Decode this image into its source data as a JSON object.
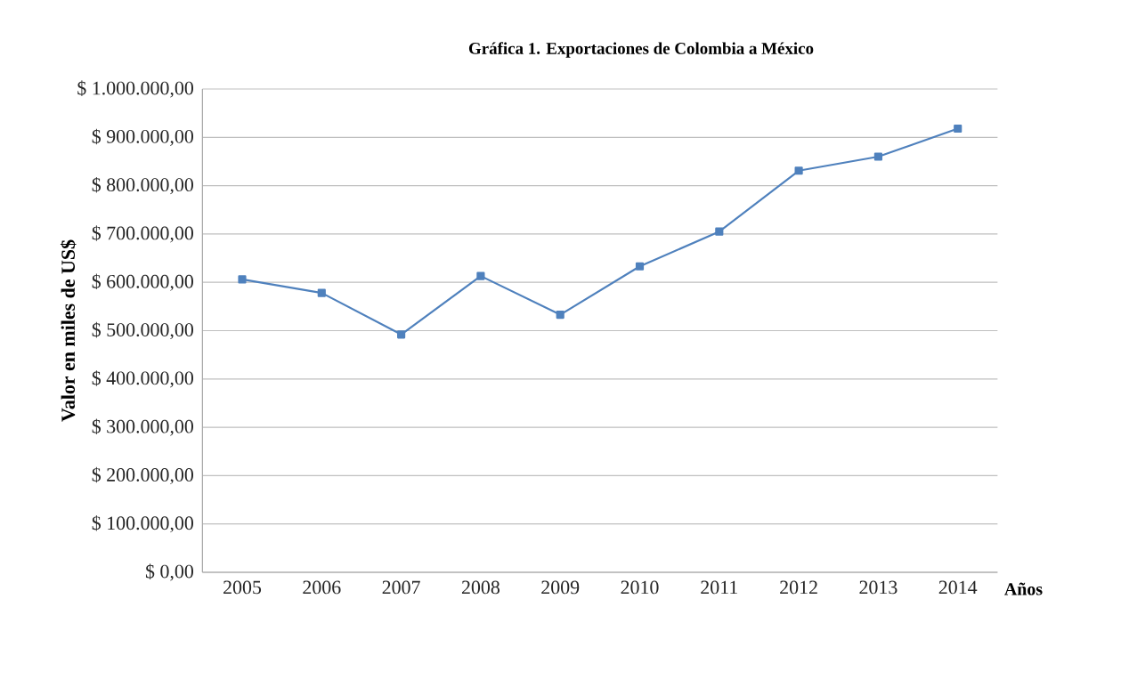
{
  "chart_data": {
    "type": "line",
    "title": "Gráfica 1. Exportaciones de Colombia a México",
    "xlabel": "Años",
    "ylabel": "Valor en miles de US$",
    "categories": [
      "2005",
      "2006",
      "2007",
      "2008",
      "2009",
      "2010",
      "2011",
      "2012",
      "2013",
      "2014"
    ],
    "series": [
      {
        "color": "#4f81bd",
        "values": [
          606000,
          578000,
          492000,
          613000,
          533000,
          633000,
          705000,
          831000,
          860000,
          918000
        ]
      }
    ],
    "ylim": [
      0,
      1000000
    ],
    "yticks": [
      {
        "value": 0,
        "label": "$ 0,00"
      },
      {
        "value": 100000,
        "label": "$ 100.000,00"
      },
      {
        "value": 200000,
        "label": "$ 200.000,00"
      },
      {
        "value": 300000,
        "label": "$ 300.000,00"
      },
      {
        "value": 400000,
        "label": "$ 400.000,00"
      },
      {
        "value": 500000,
        "label": "$ 500.000,00"
      },
      {
        "value": 600000,
        "label": "$ 600.000,00"
      },
      {
        "value": 700000,
        "label": "$ 700.000,00"
      },
      {
        "value": 800000,
        "label": "$ 800.000,00"
      },
      {
        "value": 900000,
        "label": "$ 900.000,00"
      },
      {
        "value": 1000000,
        "label": "$ 1.000.000,00"
      }
    ],
    "grid": "y",
    "marker": "square",
    "line_style": "solid"
  }
}
